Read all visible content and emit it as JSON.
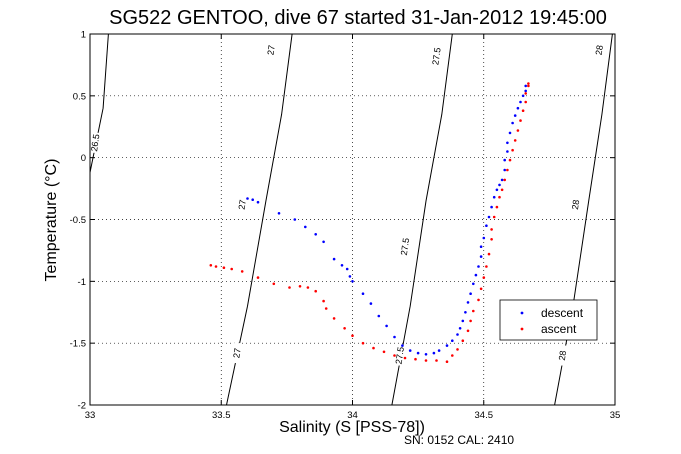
{
  "chart_data": {
    "type": "scatter",
    "title": "SG522 GENTOO, dive 67 started 31-Jan-2012 19:45:00",
    "xlabel": "Salinity (S [PSS-78])",
    "ylabel": "Temperature (°C)",
    "xlim": [
      33,
      35
    ],
    "ylim": [
      -2,
      1
    ],
    "x_ticks": [
      "33",
      "33.5",
      "34",
      "34.5",
      "35"
    ],
    "y_ticks": [
      "-2",
      "-1.5",
      "-1",
      "-0.5",
      "0",
      "0.5",
      "1"
    ],
    "grid": true,
    "legend_position": "lower-right",
    "footer": "SN: 0152  CAL: 2410",
    "isopycnals": [
      {
        "label": "26.5",
        "points": [
          [
            33.0,
            -0.12
          ],
          [
            33.05,
            0.4
          ],
          [
            33.07,
            1.0
          ]
        ]
      },
      {
        "label": "27",
        "points": [
          [
            33.52,
            -2.0
          ],
          [
            33.6,
            -1.2
          ],
          [
            33.67,
            -0.35
          ],
          [
            33.73,
            0.35
          ],
          [
            33.77,
            1.0
          ]
        ]
      },
      {
        "label": "27.5",
        "points": [
          [
            34.15,
            -2.0
          ],
          [
            34.22,
            -1.2
          ],
          [
            34.28,
            -0.35
          ],
          [
            34.34,
            0.35
          ],
          [
            34.38,
            1.0
          ]
        ]
      },
      {
        "label": "28",
        "points": [
          [
            34.77,
            -2.0
          ],
          [
            34.84,
            -1.2
          ],
          [
            34.9,
            -0.35
          ],
          [
            34.95,
            0.35
          ],
          [
            34.99,
            1.0
          ]
        ]
      }
    ],
    "isopycnal_labels": [
      {
        "text": "26.5",
        "x": 33.02,
        "y": 0.12
      },
      {
        "text": "27",
        "x": 33.58,
        "y": -0.38
      },
      {
        "text": "27",
        "x": 33.56,
        "y": -1.58
      },
      {
        "text": "27",
        "x": 33.69,
        "y": 0.87
      },
      {
        "text": "27.5",
        "x": 34.2,
        "y": -0.72
      },
      {
        "text": "27.5",
        "x": 34.18,
        "y": -1.6
      },
      {
        "text": "27.5",
        "x": 34.32,
        "y": 0.82
      },
      {
        "text": "28",
        "x": 34.85,
        "y": -0.38
      },
      {
        "text": "28",
        "x": 34.8,
        "y": -1.6
      },
      {
        "text": "28",
        "x": 34.94,
        "y": 0.87
      }
    ],
    "series": [
      {
        "name": "descent",
        "color": "#0000ff",
        "points": [
          [
            33.6,
            -0.33
          ],
          [
            33.62,
            -0.34
          ],
          [
            33.64,
            -0.36
          ],
          [
            33.72,
            -0.45
          ],
          [
            33.78,
            -0.5
          ],
          [
            33.82,
            -0.56
          ],
          [
            33.86,
            -0.62
          ],
          [
            33.89,
            -0.68
          ],
          [
            33.93,
            -0.82
          ],
          [
            33.96,
            -0.87
          ],
          [
            33.98,
            -0.9
          ],
          [
            33.99,
            -0.96
          ],
          [
            34.0,
            -1.0
          ],
          [
            34.04,
            -1.1
          ],
          [
            34.07,
            -1.18
          ],
          [
            34.1,
            -1.28
          ],
          [
            34.13,
            -1.36
          ],
          [
            34.16,
            -1.45
          ],
          [
            34.19,
            -1.52
          ],
          [
            34.22,
            -1.56
          ],
          [
            34.25,
            -1.58
          ],
          [
            34.28,
            -1.59
          ],
          [
            34.31,
            -1.58
          ],
          [
            34.33,
            -1.56
          ],
          [
            34.36,
            -1.52
          ],
          [
            34.38,
            -1.48
          ],
          [
            34.4,
            -1.43
          ],
          [
            34.41,
            -1.38
          ],
          [
            34.42,
            -1.32
          ],
          [
            34.43,
            -1.25
          ],
          [
            34.44,
            -1.17
          ],
          [
            34.45,
            -1.1
          ],
          [
            34.46,
            -1.02
          ],
          [
            34.47,
            -0.95
          ],
          [
            34.48,
            -0.88
          ],
          [
            34.49,
            -0.8
          ],
          [
            34.49,
            -0.72
          ],
          [
            34.5,
            -0.65
          ],
          [
            34.51,
            -0.55
          ],
          [
            34.52,
            -0.48
          ],
          [
            34.53,
            -0.4
          ],
          [
            34.54,
            -0.32
          ],
          [
            34.55,
            -0.26
          ],
          [
            34.56,
            -0.22
          ],
          [
            34.57,
            -0.18
          ],
          [
            34.58,
            -0.1
          ],
          [
            34.58,
            -0.02
          ],
          [
            34.59,
            0.05
          ],
          [
            34.59,
            0.12
          ],
          [
            34.6,
            0.2
          ],
          [
            34.61,
            0.28
          ],
          [
            34.62,
            0.34
          ],
          [
            34.63,
            0.4
          ],
          [
            34.64,
            0.45
          ],
          [
            34.65,
            0.5
          ],
          [
            34.66,
            0.54
          ],
          [
            34.66,
            0.58
          ]
        ]
      },
      {
        "name": "ascent",
        "color": "#ff0000",
        "points": [
          [
            33.46,
            -0.87
          ],
          [
            33.48,
            -0.88
          ],
          [
            33.51,
            -0.89
          ],
          [
            33.54,
            -0.9
          ],
          [
            33.58,
            -0.92
          ],
          [
            33.64,
            -0.97
          ],
          [
            33.7,
            -1.02
          ],
          [
            33.76,
            -1.05
          ],
          [
            33.8,
            -1.04
          ],
          [
            33.83,
            -1.05
          ],
          [
            33.86,
            -1.08
          ],
          [
            33.89,
            -1.16
          ],
          [
            33.9,
            -1.22
          ],
          [
            33.93,
            -1.3
          ],
          [
            33.97,
            -1.38
          ],
          [
            34.0,
            -1.44
          ],
          [
            34.04,
            -1.5
          ],
          [
            34.08,
            -1.54
          ],
          [
            34.12,
            -1.57
          ],
          [
            34.16,
            -1.6
          ],
          [
            34.2,
            -1.62
          ],
          [
            34.24,
            -1.63
          ],
          [
            34.28,
            -1.64
          ],
          [
            34.32,
            -1.64
          ],
          [
            34.36,
            -1.65
          ],
          [
            34.38,
            -1.6
          ],
          [
            34.4,
            -1.55
          ],
          [
            34.42,
            -1.48
          ],
          [
            34.44,
            -1.4
          ],
          [
            34.45,
            -1.32
          ],
          [
            34.46,
            -1.24
          ],
          [
            34.48,
            -1.15
          ],
          [
            34.49,
            -1.06
          ],
          [
            34.5,
            -0.97
          ],
          [
            34.51,
            -0.88
          ],
          [
            34.52,
            -0.78
          ],
          [
            34.53,
            -0.66
          ],
          [
            34.53,
            -0.58
          ],
          [
            34.54,
            -0.48
          ],
          [
            34.55,
            -0.4
          ],
          [
            34.56,
            -0.32
          ],
          [
            34.57,
            -0.26
          ],
          [
            34.58,
            -0.18
          ],
          [
            34.59,
            -0.1
          ],
          [
            34.6,
            -0.02
          ],
          [
            34.61,
            0.06
          ],
          [
            34.62,
            0.14
          ],
          [
            34.63,
            0.22
          ],
          [
            34.64,
            0.3
          ],
          [
            34.65,
            0.38
          ],
          [
            34.66,
            0.45
          ],
          [
            34.66,
            0.52
          ],
          [
            34.67,
            0.58
          ],
          [
            34.67,
            0.6
          ]
        ]
      }
    ]
  }
}
